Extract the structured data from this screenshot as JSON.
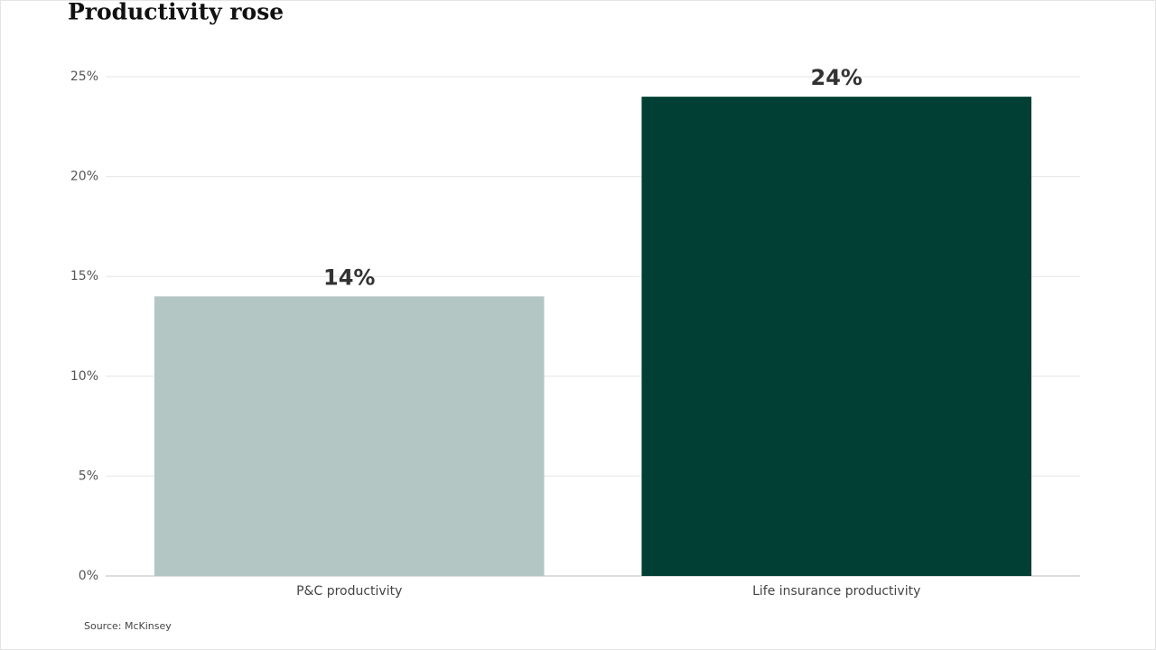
{
  "chart_data": {
    "type": "bar",
    "title": "Productivity rose",
    "categories": [
      "P&C productivity",
      "Life insurance productivity"
    ],
    "values": [
      14,
      24
    ],
    "value_labels": [
      "14%",
      "24%"
    ],
    "colors": [
      "#b3c6c3",
      "#013f35"
    ],
    "ylim": [
      0,
      25
    ],
    "yticks": [
      {
        "value": 0,
        "label": "0%"
      },
      {
        "value": 5,
        "label": "5%"
      },
      {
        "value": 10,
        "label": "10%"
      },
      {
        "value": 15,
        "label": "15%"
      },
      {
        "value": 20,
        "label": "20%"
      },
      {
        "value": 25,
        "label": "25%"
      }
    ],
    "grid": true,
    "source": "Source: McKinsey"
  }
}
